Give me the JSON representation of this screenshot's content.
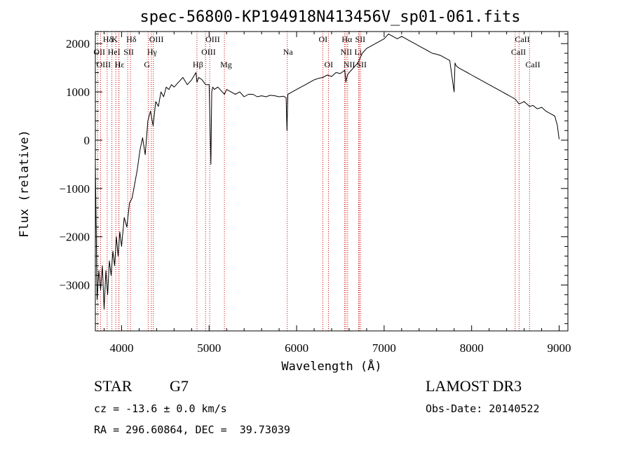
{
  "chart_data": {
    "type": "line",
    "title": "spec-56800-KP194918N413456V_sp01-061.fits",
    "xlabel": "Wavelength (Å)",
    "ylabel": "Flux (relative)",
    "xlim": [
      3700,
      9100
    ],
    "ylim": [
      -3950,
      2250
    ],
    "x_ticks": [
      4000,
      5000,
      6000,
      7000,
      8000,
      9000
    ],
    "y_ticks": [
      -3000,
      -2000,
      -1000,
      0,
      1000,
      2000
    ],
    "series": [
      {
        "name": "flux",
        "x": [
          3700,
          3720,
          3740,
          3760,
          3780,
          3800,
          3820,
          3840,
          3860,
          3880,
          3900,
          3920,
          3940,
          3960,
          3980,
          4000,
          4030,
          4060,
          4090,
          4120,
          4150,
          4180,
          4210,
          4240,
          4270,
          4300,
          4330,
          4360,
          4390,
          4420,
          4450,
          4480,
          4510,
          4540,
          4570,
          4600,
          4650,
          4700,
          4750,
          4800,
          4850,
          4861,
          4880,
          4920,
          4960,
          5000,
          5020,
          5030,
          5040,
          5060,
          5100,
          5150,
          5175,
          5200,
          5250,
          5300,
          5350,
          5400,
          5450,
          5500,
          5550,
          5600,
          5650,
          5700,
          5750,
          5800,
          5850,
          5880,
          5890,
          5896,
          5900,
          5950,
          6000,
          6050,
          6100,
          6150,
          6200,
          6250,
          6300,
          6350,
          6400,
          6450,
          6500,
          6550,
          6563,
          6580,
          6600,
          6650,
          6700,
          6750,
          6800,
          6850,
          6900,
          6950,
          7000,
          7050,
          7100,
          7150,
          7200,
          7250,
          7300,
          7350,
          7400,
          7450,
          7500,
          7550,
          7600,
          7650,
          7700,
          7750,
          7800,
          7810,
          7820,
          7850,
          7900,
          7950,
          8000,
          8050,
          8100,
          8150,
          8200,
          8250,
          8300,
          8350,
          8400,
          8450,
          8498,
          8542,
          8600,
          8662,
          8700,
          8750,
          8800,
          8850,
          8900,
          8950,
          8980,
          9000
        ],
        "y": [
          -500,
          -3300,
          -2700,
          -3100,
          -2600,
          -3500,
          -2700,
          -3200,
          -2500,
          -2800,
          -2300,
          -2600,
          -2000,
          -2400,
          -1900,
          -2200,
          -1600,
          -1800,
          -1300,
          -1200,
          -900,
          -600,
          -200,
          50,
          -300,
          400,
          600,
          300,
          800,
          700,
          1000,
          900,
          1100,
          1050,
          1150,
          1100,
          1200,
          1300,
          1150,
          1250,
          1400,
          1200,
          1300,
          1250,
          1150,
          1150,
          -500,
          1000,
          1100,
          1050,
          1100,
          1000,
          950,
          1050,
          1000,
          950,
          1000,
          900,
          950,
          950,
          900,
          920,
          900,
          930,
          920,
          900,
          910,
          880,
          200,
          700,
          950,
          1000,
          1050,
          1100,
          1150,
          1200,
          1250,
          1280,
          1300,
          1350,
          1320,
          1400,
          1380,
          1450,
          1200,
          1350,
          1400,
          1500,
          1600,
          1800,
          1900,
          1950,
          2000,
          2050,
          2100,
          2200,
          2150,
          2100,
          2150,
          2100,
          2050,
          2000,
          1950,
          1900,
          1850,
          1800,
          1780,
          1750,
          1700,
          1650,
          1000,
          1600,
          1550,
          1500,
          1450,
          1400,
          1350,
          1300,
          1250,
          1200,
          1150,
          1100,
          1050,
          1000,
          950,
          900,
          850,
          750,
          800,
          700,
          720,
          650,
          680,
          600,
          550,
          500,
          300,
          20
        ]
      }
    ],
    "lines_top": [
      {
        "label": "Hδ",
        "x": 3835
      },
      {
        "label": "K",
        "x": 3934
      },
      {
        "label": "Hδ",
        "x": 4102
      },
      {
        "label": "OIII",
        "x": 4363
      },
      {
        "label": "OIII",
        "x": 5007
      },
      {
        "label": "OI",
        "x": 6300
      },
      {
        "label": "Hα",
        "x": 6563
      },
      {
        "label": "SII",
        "x": 6716
      },
      {
        "label": "CaII",
        "x": 8542
      }
    ],
    "lines_mid": [
      {
        "label": "OII",
        "x": 3727
      },
      {
        "label": "HeI",
        "x": 3889
      },
      {
        "label": "SII",
        "x": 4070
      },
      {
        "label": "Hγ",
        "x": 4340
      },
      {
        "label": "OIII",
        "x": 4959
      },
      {
        "label": "Na",
        "x": 5893
      },
      {
        "label": "NII",
        "x": 6548
      },
      {
        "label": "Li",
        "x": 6708
      },
      {
        "label": "CaII",
        "x": 8498
      }
    ],
    "lines_low": [
      {
        "label": "OIII",
        "x": 3760
      },
      {
        "label": "Hε",
        "x": 3970
      },
      {
        "label": "H",
        "x": 3968
      },
      {
        "label": "G",
        "x": 4304
      },
      {
        "label": "Hβ",
        "x": 4861
      },
      {
        "label": "Mg",
        "x": 5175
      },
      {
        "label": "OI",
        "x": 6364
      },
      {
        "label": "NII",
        "x": 6583
      },
      {
        "label": "SII",
        "x": 6731
      },
      {
        "label": "CaII",
        "x": 8662
      }
    ]
  },
  "info": {
    "object_class": "STAR",
    "subclass": "G7",
    "survey": "LAMOST DR3",
    "cz": "cz = -13.6 ± 0.0 km/s",
    "obs_date": "Obs-Date: 20140522",
    "radec": "RA = 296.60864, DEC =  39.73039"
  },
  "colors": {
    "line": "#000000",
    "marker": "#cc0000"
  }
}
